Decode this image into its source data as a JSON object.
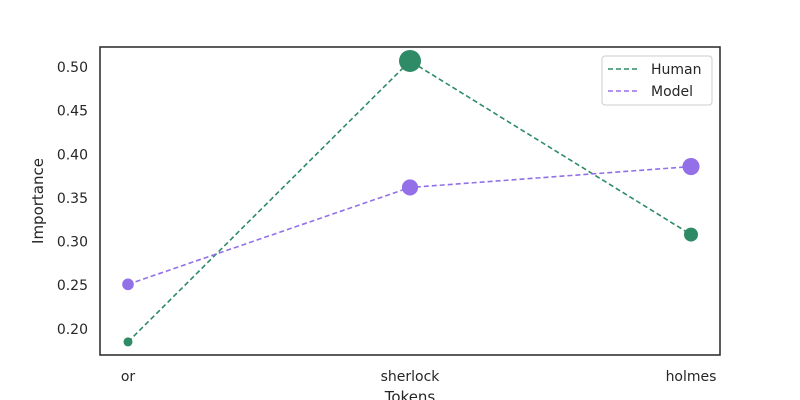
{
  "chart_data": {
    "type": "line",
    "categories": [
      "or",
      "sherlock",
      "holmes"
    ],
    "series": [
      {
        "name": "Human",
        "values": [
          0.185,
          0.507,
          0.308
        ],
        "color": "#2e8b66"
      },
      {
        "name": "Model",
        "values": [
          0.251,
          0.362,
          0.386
        ],
        "color": "#9370e8"
      }
    ],
    "xlabel": "Tokens",
    "ylabel": "Importance",
    "ylim": [
      0.17,
      0.523
    ],
    "yticks": [
      "0.20",
      "0.25",
      "0.30",
      "0.35",
      "0.40",
      "0.45",
      "0.50"
    ],
    "line_style": "dashed",
    "marker_size_scales_with_value": true,
    "grid": false,
    "legend": "top-right"
  }
}
